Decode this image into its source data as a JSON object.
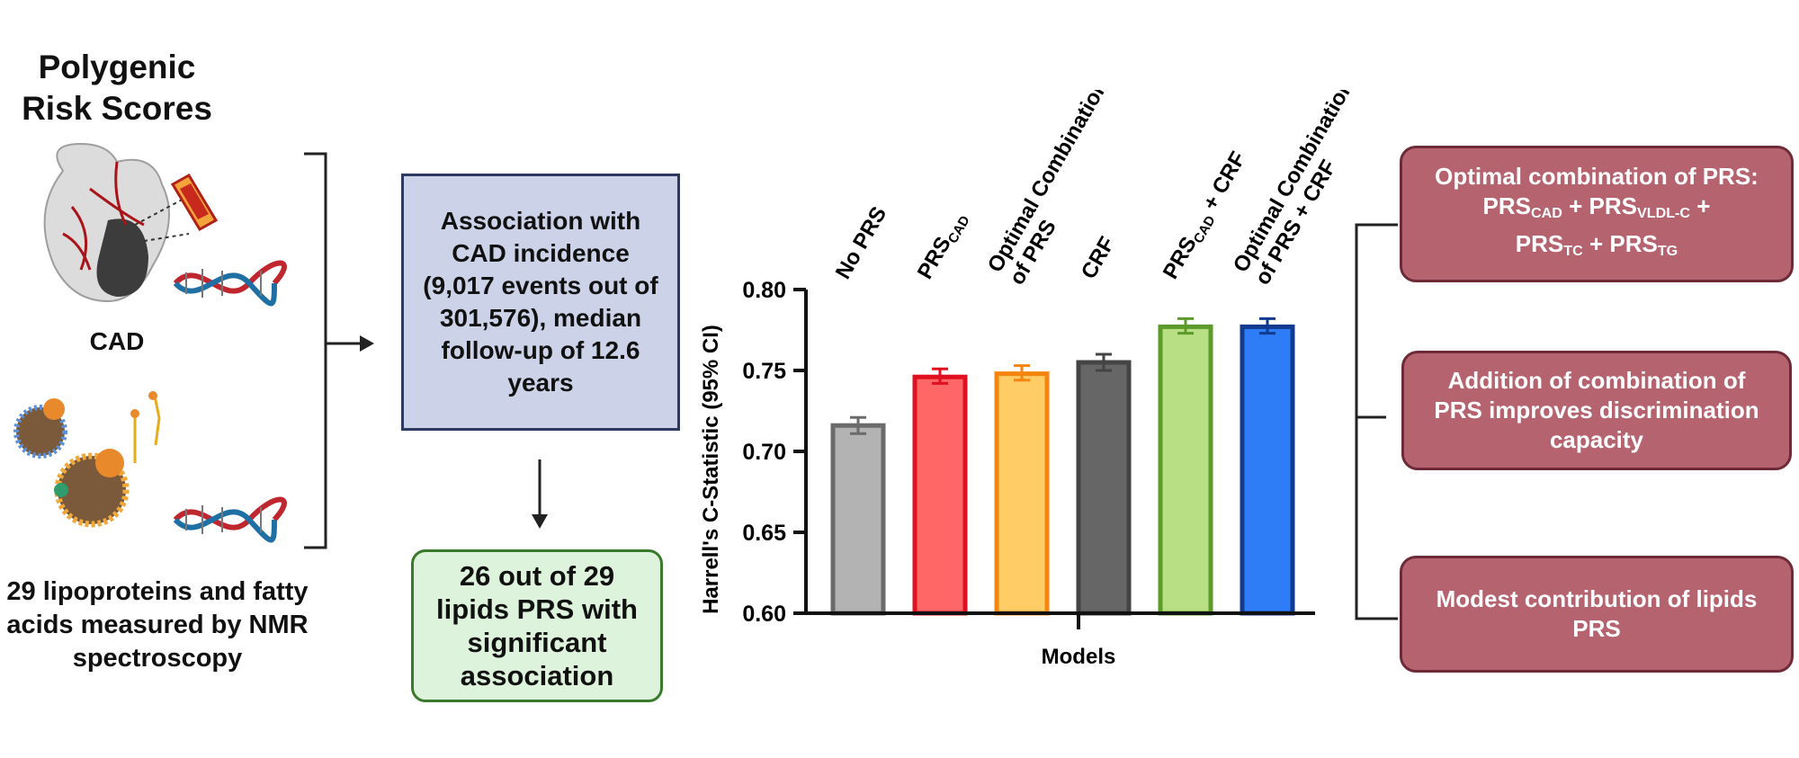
{
  "left_panel": {
    "title": "Polygenic Risk Scores",
    "cad_label": "CAD",
    "lipids_label": "29 lipoproteins and fatty acids measured by NMR spectroscopy"
  },
  "center": {
    "association_text": "Association with CAD incidence (9,017 events out of 301,576), median follow-up of 12.6 years",
    "significant_text": "26 out of 29 lipids PRS with significant association"
  },
  "right_panel": {
    "box1": {
      "line1": "Optimal combination of PRS:",
      "line2_a": "PRS",
      "line2_a_sub": "CAD",
      "line2_b": " + PRS",
      "line2_b_sub": "VLDL-C",
      "line2_c": " +",
      "line3_a": "PRS",
      "line3_a_sub": "TC",
      "line3_b": " + PRS",
      "line3_b_sub": "TG"
    },
    "box2": "Addition of combination of PRS improves discrimination capacity",
    "box3": "Modest contribution of lipids PRS"
  },
  "chart_data": {
    "type": "bar",
    "categories": [
      "No PRS",
      "PRS_CAD",
      "Optimal Combination of PRS",
      "CRF",
      "PRS_CAD + CRF",
      "Optimal Combination of PRS + CRF"
    ],
    "category_labels": [
      {
        "line1": "No PRS"
      },
      {
        "main": "PRS",
        "sub": "CAD"
      },
      {
        "line1": "Optimal Combination",
        "line2": "of PRS"
      },
      {
        "line1": "CRF"
      },
      {
        "main": "PRS",
        "sub": "CAD",
        "tail": " + CRF"
      },
      {
        "line1": "Optimal Combination",
        "line2": "of PRS + CRF"
      }
    ],
    "values": [
      0.716,
      0.746,
      0.748,
      0.755,
      0.777,
      0.777
    ],
    "ci_low": [
      0.711,
      0.742,
      0.744,
      0.75,
      0.773,
      0.773
    ],
    "ci_high": [
      0.721,
      0.751,
      0.753,
      0.76,
      0.782,
      0.782
    ],
    "colors": {
      "fill": [
        "#b3b3b3",
        "#ff6666",
        "#ffcc66",
        "#666666",
        "#b9df84",
        "#2e7df6"
      ],
      "stroke": [
        "#6b6b6b",
        "#e0101f",
        "#f5850f",
        "#444444",
        "#5c9a2c",
        "#123a8f"
      ]
    },
    "xlabel": "Models",
    "ylabel": "Harrell's C-Statistic (95% CI)",
    "ylim": [
      0.6,
      0.8
    ],
    "yticks": [
      "0.60",
      "0.65",
      "0.70",
      "0.75",
      "0.80"
    ],
    "grid": false
  }
}
